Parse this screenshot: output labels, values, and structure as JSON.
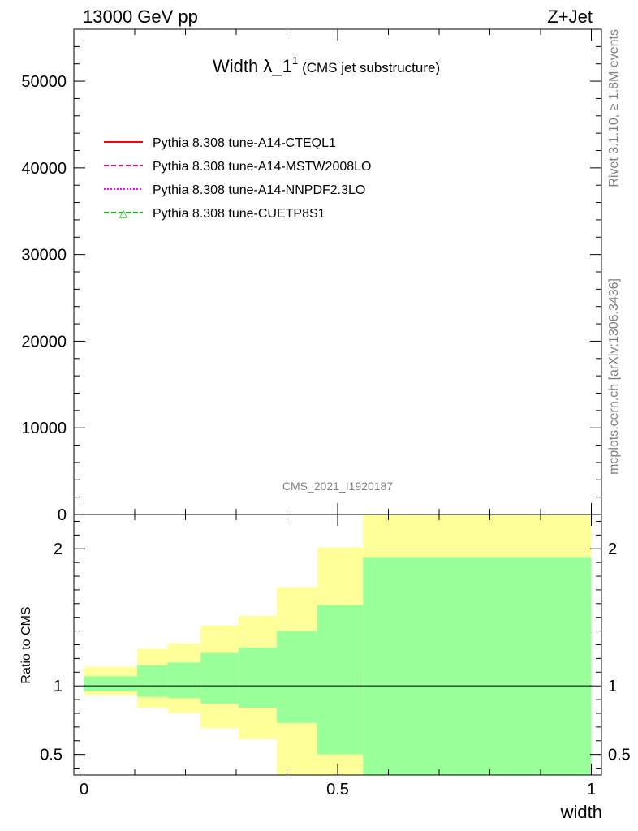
{
  "header": {
    "left": "13000 GeV pp",
    "right": "Z+Jet"
  },
  "title": {
    "main": "Width λ_1",
    "superscript": "1",
    "suffix": "(CMS jet substructure)"
  },
  "side_text": {
    "rivet": "Rivet 3.1.10, ≥ 1.8M events",
    "mcplots": "mcplots.cern.ch [arXiv:1306.3436]"
  },
  "watermark": "CMS_2021_I1920187",
  "colors": {
    "inner_band": "#99ff99",
    "outer_band": "#ffff99"
  },
  "chart_data": [
    {
      "type": "line",
      "title": "Width λ_1^1 (CMS jet substructure)",
      "xlabel": "",
      "ylabel": "",
      "xlim": [
        -0.02,
        1.02
      ],
      "ylim": [
        0,
        56000
      ],
      "yticks": [
        0,
        10000,
        20000,
        30000,
        40000,
        50000
      ],
      "ytick_labels": [
        "0",
        "10000",
        "20000",
        "30000",
        "40000",
        "50000"
      ],
      "legend_position": "top-left",
      "series": [
        {
          "name": "Pythia 8.308 tune-A14-CTEQL1",
          "color": "#ff0000",
          "style": "solid",
          "marker": ""
        },
        {
          "name": "Pythia 8.308 tune-A14-MSTW2008LO",
          "color": "#ff0080",
          "style": "dashed",
          "marker": ""
        },
        {
          "name": "Pythia 8.308 tune-A14-NNPDF2.3LO",
          "color": "#ff00ff",
          "style": "dotted",
          "marker": ""
        },
        {
          "name": "Pythia 8.308 tune-CUETP8S1",
          "color": "#00c000",
          "style": "dashed",
          "marker": "△"
        }
      ]
    },
    {
      "type": "area",
      "title": "",
      "xlabel": "width",
      "ylabel": "Ratio to CMS",
      "xlim": [
        -0.02,
        1.02
      ],
      "ylim": [
        0.35,
        2.25
      ],
      "xticks": [
        0,
        0.5,
        1
      ],
      "xtick_labels": [
        "0",
        "0.5",
        "1"
      ],
      "yticks": [
        0.5,
        1,
        2
      ],
      "ytick_labels": [
        "0.5",
        "1",
        "2"
      ],
      "reference_line": 1,
      "bins": [
        {
          "x0": 0.0,
          "x1": 0.105,
          "inner_lo": 0.96,
          "inner_hi": 1.07,
          "outer_lo": 0.93,
          "outer_hi": 1.14
        },
        {
          "x0": 0.105,
          "x1": 0.165,
          "inner_lo": 0.92,
          "inner_hi": 1.15,
          "outer_lo": 0.84,
          "outer_hi": 1.27
        },
        {
          "x0": 0.165,
          "x1": 0.23,
          "inner_lo": 0.91,
          "inner_hi": 1.17,
          "outer_lo": 0.8,
          "outer_hi": 1.31
        },
        {
          "x0": 0.23,
          "x1": 0.305,
          "inner_lo": 0.87,
          "inner_hi": 1.24,
          "outer_lo": 0.69,
          "outer_hi": 1.44
        },
        {
          "x0": 0.305,
          "x1": 0.38,
          "inner_lo": 0.84,
          "inner_hi": 1.28,
          "outer_lo": 0.61,
          "outer_hi": 1.51
        },
        {
          "x0": 0.38,
          "x1": 0.46,
          "inner_lo": 0.73,
          "inner_hi": 1.4,
          "outer_lo": 0.35,
          "outer_hi": 1.72
        },
        {
          "x0": 0.46,
          "x1": 0.55,
          "inner_lo": 0.5,
          "inner_hi": 1.59,
          "outer_lo": 0.35,
          "outer_hi": 2.01
        },
        {
          "x0": 0.55,
          "x1": 1.0,
          "inner_lo": 0.35,
          "inner_hi": 1.94,
          "outer_lo": 0.35,
          "outer_hi": 2.25
        }
      ]
    }
  ]
}
